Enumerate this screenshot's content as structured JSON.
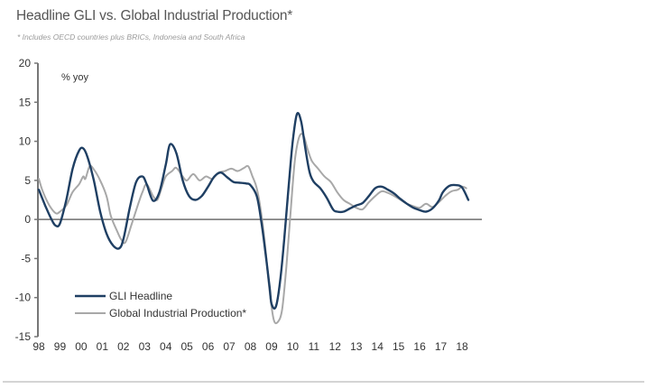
{
  "chart_data": {
    "type": "line",
    "title": "Headline GLI vs. Global Industrial Production*",
    "subtitle": "* Includes OECD countries plus BRICs, Indonesia and South Africa",
    "ylabel": "% yoy",
    "xlabel": "",
    "ylim": [
      -15,
      20
    ],
    "xlim": [
      1998,
      2018.6
    ],
    "yticks": [
      20,
      15,
      10,
      5,
      0,
      -5,
      -10,
      -15
    ],
    "ytick_labels": [
      "20",
      "15",
      "10",
      "5",
      "0",
      "-5",
      "-10",
      "-15"
    ],
    "xticks": [
      1998,
      1999,
      2000,
      2001,
      2002,
      2003,
      2004,
      2005,
      2006,
      2007,
      2008,
      2009,
      2010,
      2011,
      2012,
      2013,
      2014,
      2015,
      2016,
      2017,
      2018
    ],
    "xtick_labels": [
      "98",
      "99",
      "00",
      "01",
      "02",
      "03",
      "04",
      "05",
      "06",
      "07",
      "08",
      "09",
      "10",
      "11",
      "12",
      "13",
      "14",
      "15",
      "16",
      "17",
      "18"
    ],
    "grid": false,
    "zero_line": true,
    "legend": {
      "placement": "bottom-left"
    },
    "series": [
      {
        "name": "GLI Headline",
        "color": "#1f3f63",
        "x": [
          1998.0,
          1998.3,
          1998.6,
          1998.8,
          1999.0,
          1999.3,
          1999.6,
          1999.9,
          2000.1,
          2000.3,
          2000.6,
          2000.9,
          2001.2,
          2001.5,
          2001.8,
          2002.0,
          2002.3,
          2002.6,
          2002.9,
          2003.1,
          2003.4,
          2003.7,
          2004.0,
          2004.2,
          2004.5,
          2004.8,
          2005.1,
          2005.4,
          2005.7,
          2006.0,
          2006.3,
          2006.6,
          2006.9,
          2007.2,
          2007.5,
          2007.8,
          2008.0,
          2008.3,
          2008.5,
          2008.7,
          2008.9,
          2009.0,
          2009.2,
          2009.4,
          2009.6,
          2009.8,
          2010.0,
          2010.2,
          2010.4,
          2010.6,
          2010.8,
          2011.0,
          2011.3,
          2011.6,
          2011.9,
          2012.1,
          2012.4,
          2012.7,
          2013.0,
          2013.3,
          2013.6,
          2013.9,
          2014.2,
          2014.5,
          2014.8,
          2015.1,
          2015.4,
          2015.7,
          2016.0,
          2016.3,
          2016.6,
          2016.9,
          2017.1,
          2017.4,
          2017.7,
          2018.0,
          2018.3
        ],
        "values": [
          3.8,
          1.8,
          0.0,
          -0.8,
          -0.5,
          2.5,
          6.5,
          8.8,
          9.1,
          8.0,
          5.0,
          1.0,
          -1.8,
          -3.3,
          -3.7,
          -2.5,
          1.5,
          4.8,
          5.5,
          4.5,
          2.4,
          3.5,
          7.0,
          9.6,
          8.5,
          5.0,
          3.0,
          2.5,
          3.0,
          4.2,
          5.5,
          6.0,
          5.4,
          4.8,
          4.7,
          4.6,
          4.4,
          3.0,
          0.0,
          -4.0,
          -8.5,
          -10.8,
          -11.2,
          -8.0,
          -2.5,
          4.0,
          10.0,
          13.5,
          12.5,
          9.0,
          6.0,
          4.8,
          4.0,
          2.8,
          1.3,
          1.0,
          1.0,
          1.4,
          1.8,
          2.1,
          3.0,
          4.0,
          4.2,
          3.8,
          3.3,
          2.6,
          2.0,
          1.5,
          1.2,
          1.0,
          1.4,
          2.4,
          3.5,
          4.3,
          4.4,
          4.1,
          2.5
        ]
      },
      {
        "name": "Global Industrial Production*",
        "color": "#a8a8a8",
        "x": [
          1998.0,
          1998.2,
          1998.5,
          1998.8,
          1999.0,
          1999.3,
          1999.6,
          1999.9,
          2000.1,
          2000.2,
          2000.4,
          2000.6,
          2000.9,
          2001.2,
          2001.4,
          2001.7,
          2001.9,
          2002.1,
          2002.4,
          2002.7,
          2002.9,
          2003.1,
          2003.4,
          2003.6,
          2003.8,
          2004.0,
          2004.3,
          2004.5,
          2004.8,
          2005.0,
          2005.3,
          2005.6,
          2005.9,
          2006.2,
          2006.5,
          2006.8,
          2007.1,
          2007.4,
          2007.7,
          2007.9,
          2008.1,
          2008.3,
          2008.5,
          2008.7,
          2008.9,
          2009.1,
          2009.3,
          2009.5,
          2009.7,
          2009.9,
          2010.1,
          2010.3,
          2010.5,
          2010.7,
          2010.9,
          2011.2,
          2011.5,
          2011.8,
          2012.1,
          2012.4,
          2012.7,
          2013.0,
          2013.3,
          2013.6,
          2013.9,
          2014.2,
          2014.5,
          2014.8,
          2015.1,
          2015.4,
          2015.7,
          2016.0,
          2016.3,
          2016.6,
          2016.9,
          2017.2,
          2017.5,
          2017.8,
          2018.0,
          2018.2
        ],
        "values": [
          5.2,
          3.5,
          1.8,
          0.8,
          1.0,
          1.8,
          3.5,
          4.5,
          5.5,
          5.2,
          6.8,
          6.4,
          5.0,
          3.0,
          0.5,
          -1.5,
          -2.6,
          -2.9,
          -0.5,
          2.0,
          3.5,
          4.5,
          3.0,
          2.5,
          4.0,
          5.5,
          6.2,
          6.6,
          5.5,
          5.0,
          5.8,
          5.0,
          5.5,
          5.2,
          6.0,
          6.2,
          6.5,
          6.2,
          6.6,
          6.8,
          5.5,
          4.0,
          1.0,
          -3.5,
          -9.0,
          -12.8,
          -13.1,
          -11.5,
          -6.0,
          1.0,
          7.5,
          10.5,
          10.8,
          9.0,
          7.5,
          6.5,
          5.5,
          4.8,
          3.5,
          2.5,
          2.0,
          1.5,
          1.3,
          2.2,
          3.0,
          3.6,
          3.4,
          3.0,
          2.5,
          2.0,
          1.7,
          1.5,
          2.0,
          1.6,
          2.2,
          3.0,
          3.6,
          3.8,
          4.2,
          4.0
        ]
      }
    ]
  }
}
